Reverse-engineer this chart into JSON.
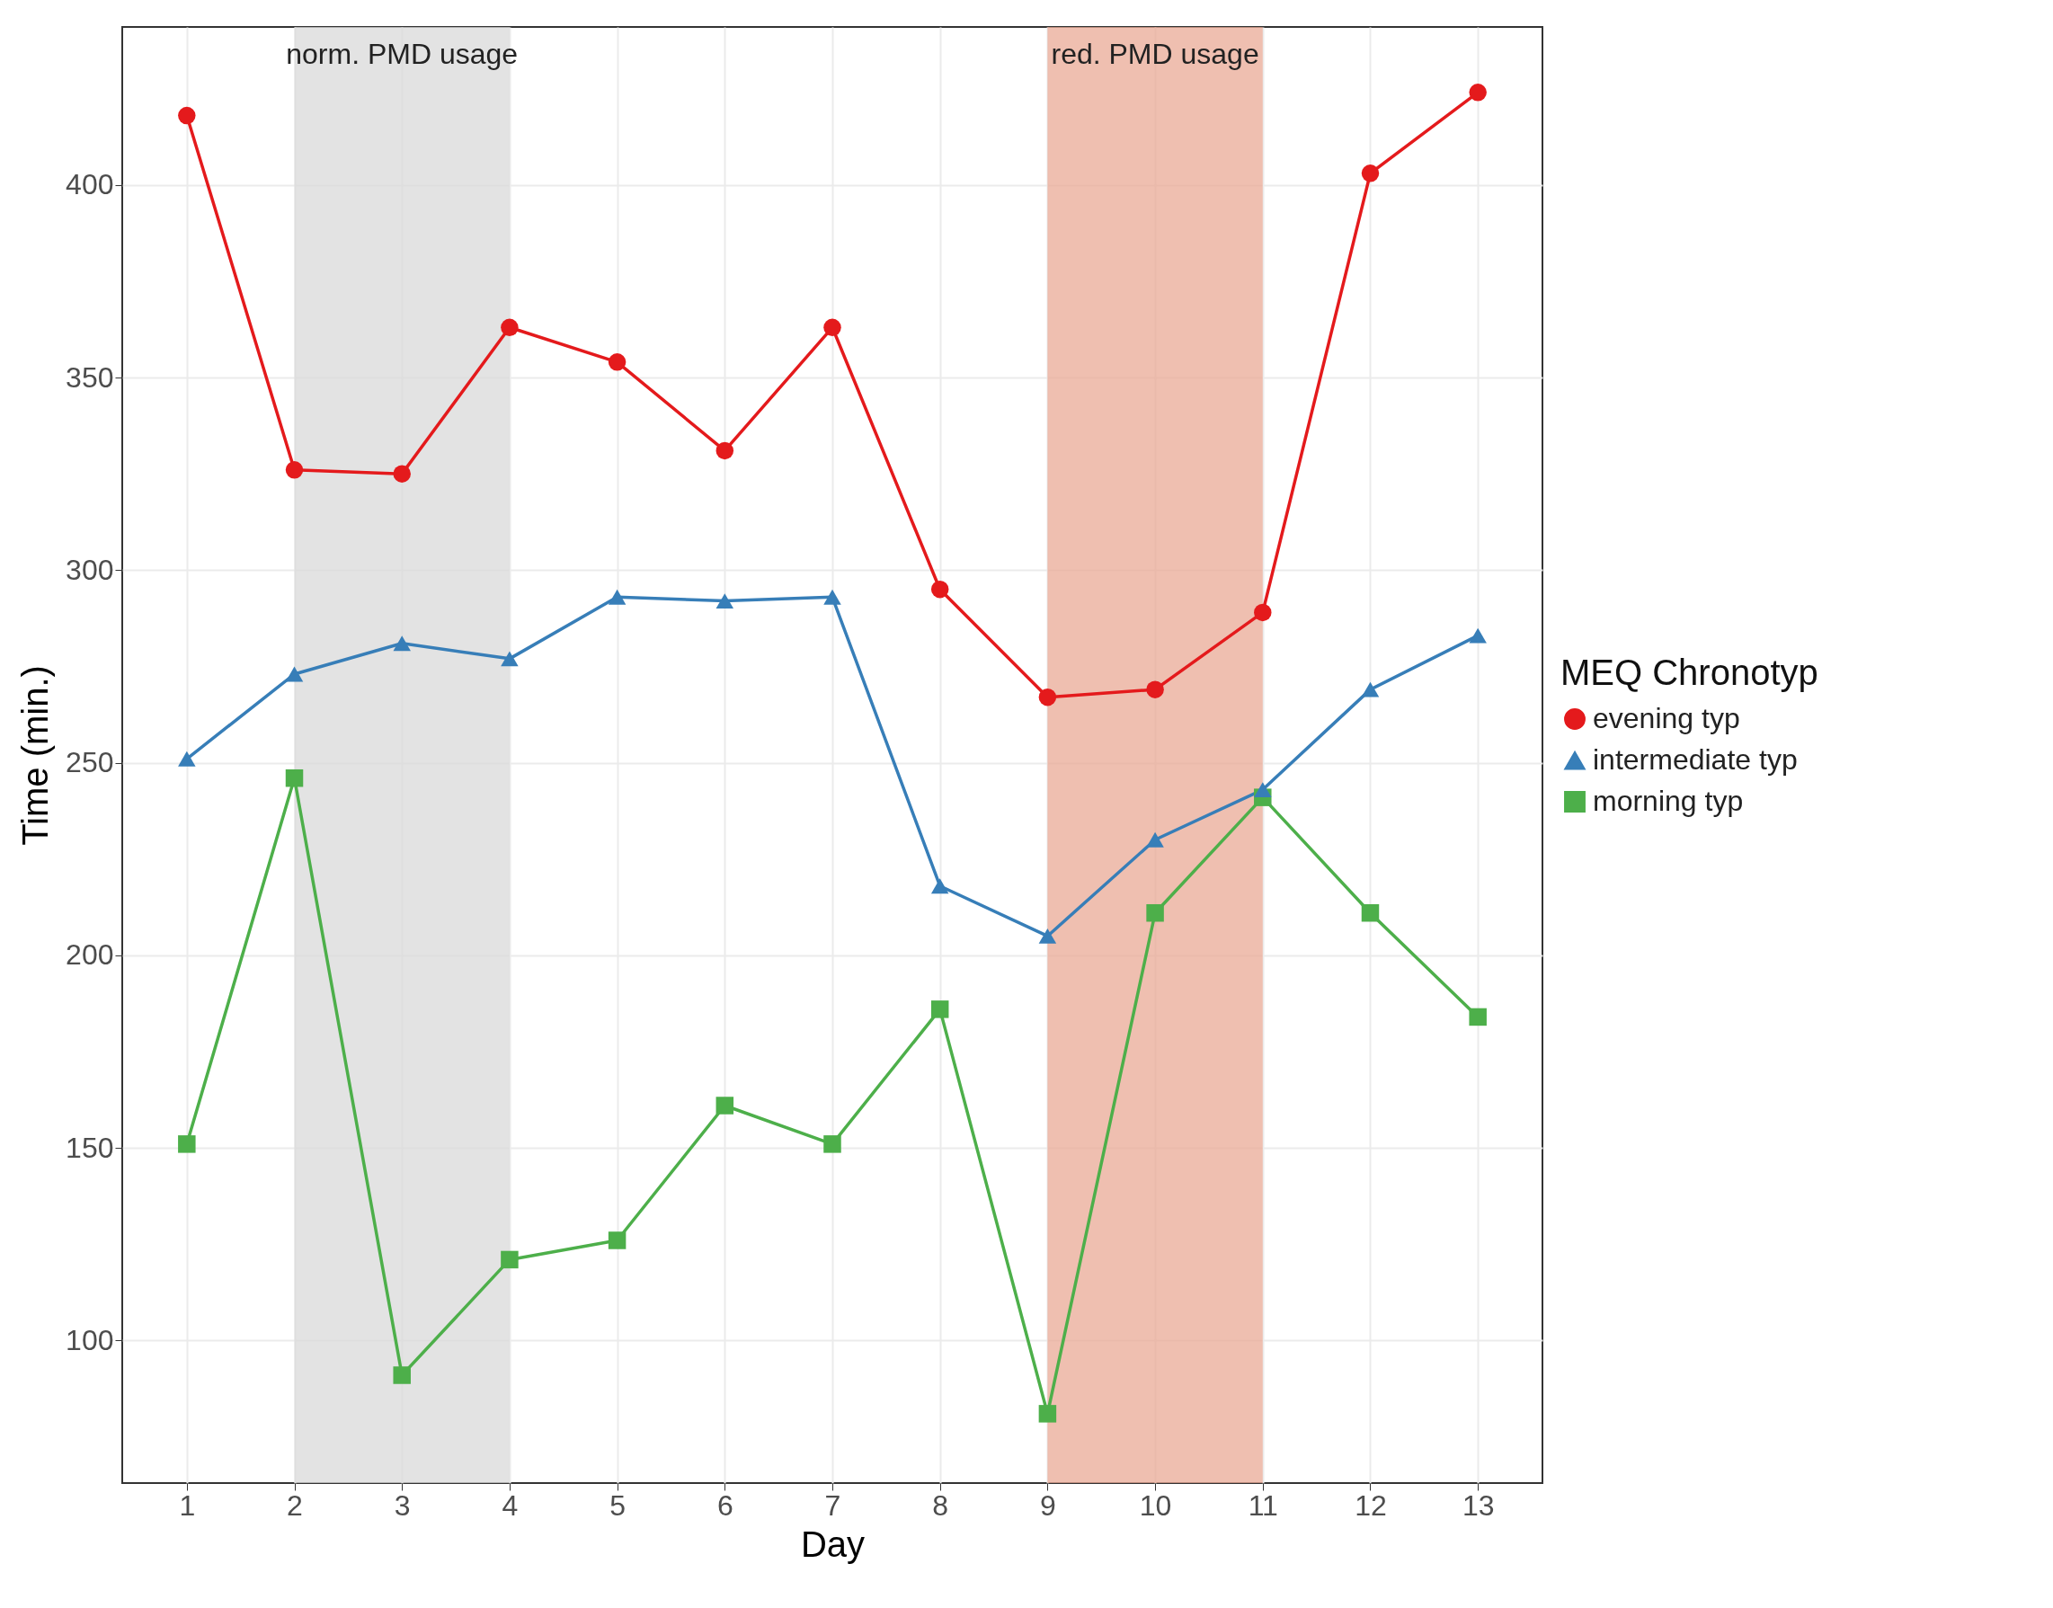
{
  "chart_data": {
    "type": "line",
    "xlabel": "Day",
    "ylabel": "Time (min.)",
    "legend_title": "MEQ Chronotyp",
    "x": [
      1,
      2,
      3,
      4,
      5,
      6,
      7,
      8,
      9,
      10,
      11,
      12,
      13
    ],
    "series": [
      {
        "name": "evening typ",
        "color": "#e41a1c",
        "marker": "circle",
        "values": [
          418,
          326,
          325,
          363,
          354,
          331,
          363,
          295,
          267,
          269,
          289,
          403,
          424
        ]
      },
      {
        "name": "intermediate typ",
        "color": "#377eb8",
        "marker": "triangle",
        "values": [
          251,
          273,
          281,
          277,
          293,
          292,
          293,
          218,
          205,
          230,
          243,
          269,
          283
        ]
      },
      {
        "name": "morning typ",
        "color": "#4daf4a",
        "marker": "square",
        "values": [
          151,
          246,
          91,
          121,
          126,
          161,
          151,
          186,
          81,
          211,
          241,
          211,
          184
        ]
      }
    ],
    "xlim": [
      0.4,
      13.6
    ],
    "xticks": [
      1,
      2,
      3,
      4,
      5,
      6,
      7,
      8,
      9,
      10,
      11,
      12,
      13
    ],
    "ylim": [
      63,
      441
    ],
    "yticks": [
      100,
      150,
      200,
      250,
      300,
      350,
      400
    ],
    "bands": [
      {
        "axis": "x",
        "from": 2,
        "to": 4,
        "label": "norm. PMD usage",
        "color": "#d9dad9"
      },
      {
        "axis": "x",
        "from": 9,
        "to": 11,
        "label": "red. PMD usage",
        "color": "#e9a995"
      }
    ],
    "grid": true,
    "legend": "right",
    "line_style": "solid"
  }
}
